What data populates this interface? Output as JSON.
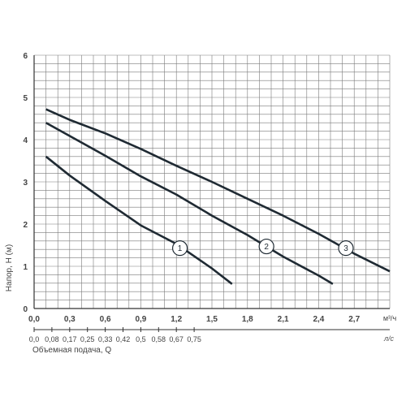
{
  "colors": {
    "grid": "#7a7a7a",
    "curve": "#1f2a33",
    "axis": "#333333",
    "text": "#444444",
    "marker_fill": "#ffffff"
  },
  "chart_data": {
    "type": "line",
    "title": "",
    "ylabel": "Напор, Н (м)",
    "xlabel": "Объемная подача, Q",
    "x_unit": "м³/ч",
    "x2_unit": "л/с",
    "xlim": [
      0,
      3.0
    ],
    "ylim": [
      0,
      6
    ],
    "x_ticks": [
      "0,0",
      "0,3",
      "0,6",
      "0,9",
      "1,2",
      "1,5",
      "1,8",
      "2,1",
      "2,4",
      "2,7"
    ],
    "x_tick_values": [
      0,
      0.3,
      0.6,
      0.9,
      1.2,
      1.5,
      1.8,
      2.1,
      2.4,
      2.7
    ],
    "x2_ticks": [
      "0,0",
      "0,08",
      "0,17",
      "0,25",
      "0,33",
      "0,42",
      "0,5",
      "0,58",
      "0,67",
      "0,75"
    ],
    "x2_tick_values": [
      0,
      0.15,
      0.3,
      0.45,
      0.6,
      0.75,
      0.9,
      1.05,
      1.2,
      1.35
    ],
    "y_ticks": [
      "0",
      "1",
      "2",
      "3",
      "4",
      "5",
      "6"
    ],
    "y_tick_values": [
      0,
      1,
      2,
      3,
      4,
      5,
      6
    ],
    "grid": true,
    "grid_x_step": 0.1,
    "grid_y_step": 0.2,
    "series": [
      {
        "label": "1",
        "label_at": [
          1.23,
          1.43
        ],
        "points": [
          [
            0.1,
            3.6
          ],
          [
            0.3,
            3.15
          ],
          [
            0.6,
            2.55
          ],
          [
            0.9,
            1.97
          ],
          [
            1.2,
            1.53
          ],
          [
            1.5,
            0.95
          ],
          [
            1.67,
            0.58
          ]
        ]
      },
      {
        "label": "2",
        "label_at": [
          1.96,
          1.47
        ],
        "points": [
          [
            0.1,
            4.4
          ],
          [
            0.6,
            3.62
          ],
          [
            0.9,
            3.13
          ],
          [
            1.2,
            2.7
          ],
          [
            1.5,
            2.2
          ],
          [
            1.8,
            1.74
          ],
          [
            2.1,
            1.23
          ],
          [
            2.4,
            0.78
          ],
          [
            2.52,
            0.58
          ]
        ]
      },
      {
        "label": "3",
        "label_at": [
          2.63,
          1.43
        ],
        "points": [
          [
            0.1,
            4.72
          ],
          [
            0.3,
            4.47
          ],
          [
            0.6,
            4.15
          ],
          [
            0.9,
            3.78
          ],
          [
            1.2,
            3.38
          ],
          [
            1.5,
            3.0
          ],
          [
            1.8,
            2.6
          ],
          [
            2.1,
            2.2
          ],
          [
            2.4,
            1.77
          ],
          [
            2.7,
            1.3
          ],
          [
            3.0,
            0.88
          ]
        ]
      }
    ]
  }
}
